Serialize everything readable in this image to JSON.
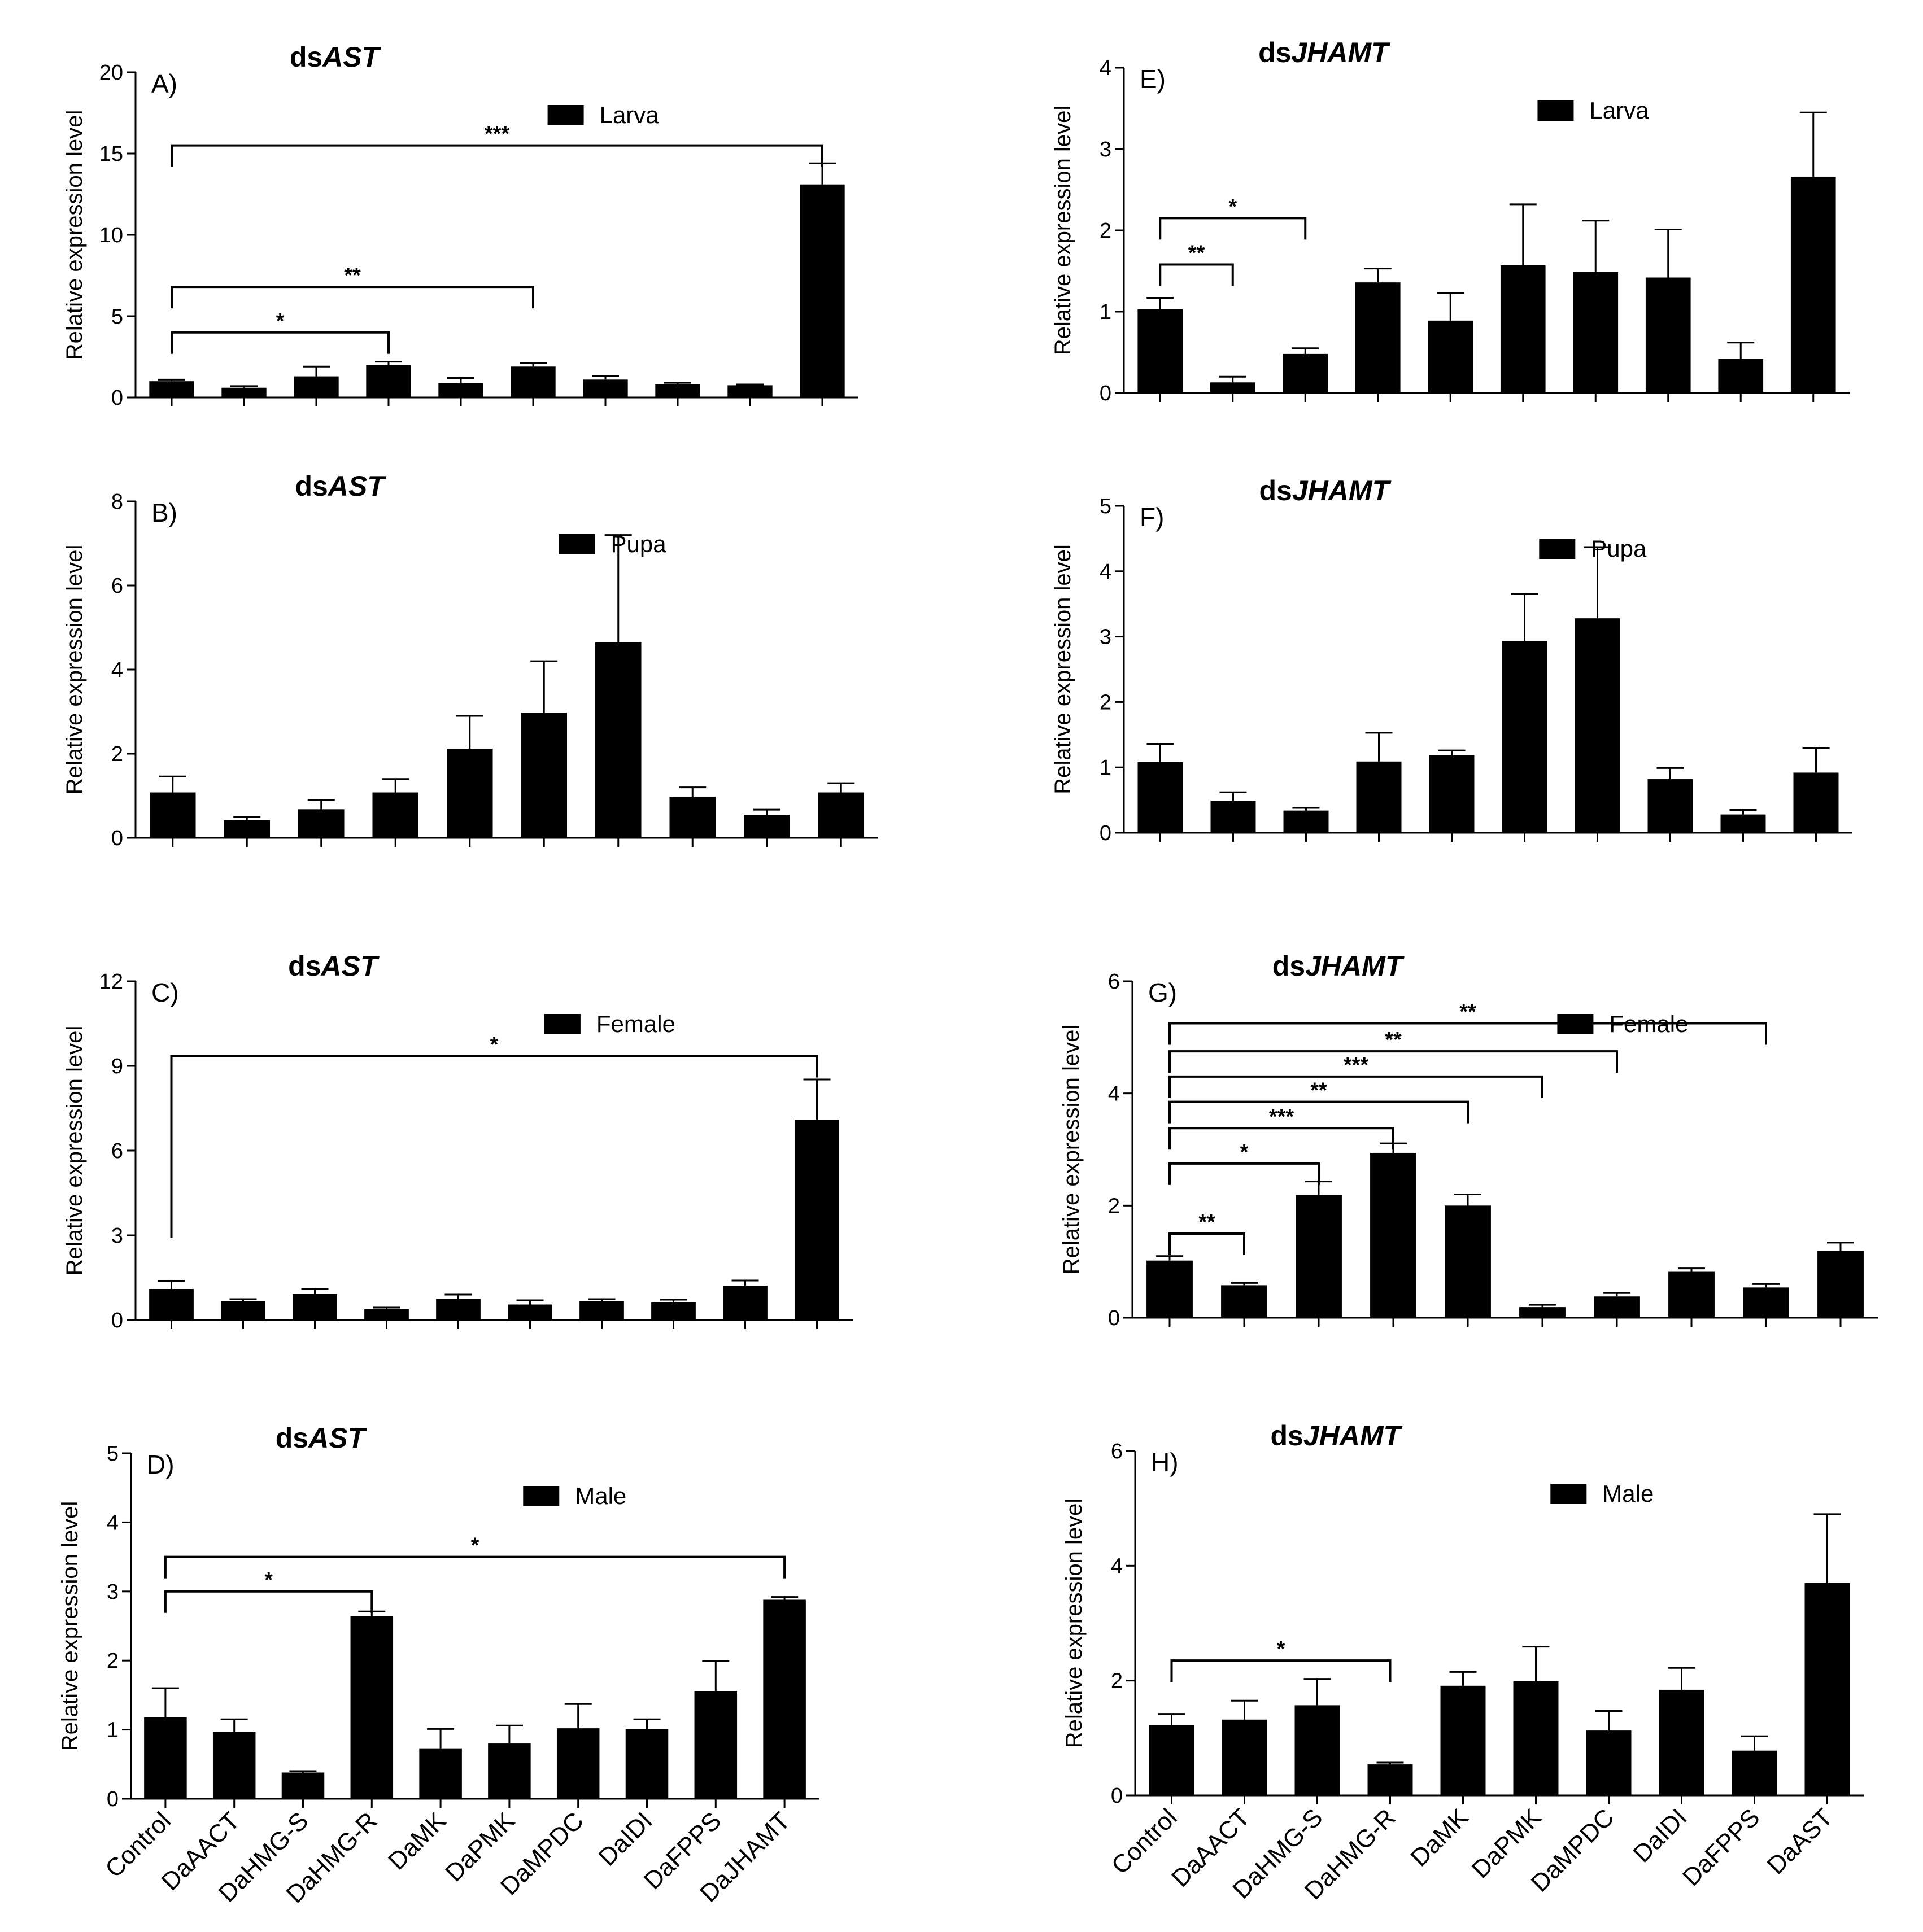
{
  "figure": {
    "categories_left": [
      "Control",
      "DaAACT",
      "DaHMG-S",
      "DaHMG-R",
      "DaMK",
      "DaPMK",
      "DaMPDC",
      "DaIDI",
      "DaFPPS",
      "DaJHAMT"
    ],
    "categories_right": [
      "Control",
      "DaAACT",
      "DaHMG-S",
      "DaHMG-R",
      "DaMK",
      "DaPMK",
      "DaMPDC",
      "DaIDI",
      "DaFPPS",
      "DaAST"
    ],
    "bar_color": "#000000"
  },
  "chart_data": [
    {
      "id": "A",
      "type": "bar",
      "letter": "A)",
      "title_prefix": "ds",
      "title_gene": "AST",
      "legend": "Larva",
      "ylabel": "Relative expression level",
      "ylim": [
        0,
        20
      ],
      "yticks": [
        "0",
        "5",
        "10",
        "15",
        "20"
      ],
      "categories": [
        "Control",
        "DaAACT",
        "DaHMG-S",
        "DaHMG-R",
        "DaMK",
        "DaPMK",
        "DaMPDC",
        "DaIDI",
        "DaFPPS",
        "DaJHAMT"
      ],
      "values": [
        1.0,
        0.6,
        1.3,
        2.0,
        0.9,
        1.9,
        1.1,
        0.8,
        0.75,
        13.1
      ],
      "errors": [
        0.1,
        0.1,
        0.6,
        0.2,
        0.3,
        0.2,
        0.2,
        0.1,
        0.05,
        1.3
      ],
      "significance": [
        {
          "from": 0,
          "to": 3,
          "y": 4.0,
          "label": "*"
        },
        {
          "from": 0,
          "to": 5,
          "y": 6.8,
          "label": "**"
        },
        {
          "from": 0,
          "to": 9,
          "y": 15.5,
          "label": "***"
        }
      ]
    },
    {
      "id": "E",
      "type": "bar",
      "letter": "E)",
      "title_prefix": "ds",
      "title_gene": "JHAMT",
      "legend": "Larva",
      "ylabel": "Relative expression level",
      "ylim": [
        0,
        4
      ],
      "yticks": [
        "0",
        "1",
        "2",
        "3",
        "4"
      ],
      "categories": [
        "Control",
        "DaAACT",
        "DaHMG-S",
        "DaHMG-R",
        "DaMK",
        "DaPMK",
        "DaMPDC",
        "DaIDI",
        "DaFPPS",
        "DaAST"
      ],
      "values": [
        1.03,
        0.13,
        0.48,
        1.36,
        0.89,
        1.57,
        1.49,
        1.42,
        0.42,
        2.66
      ],
      "errors": [
        0.14,
        0.07,
        0.07,
        0.17,
        0.34,
        0.75,
        0.63,
        0.59,
        0.2,
        0.79
      ],
      "significance": [
        {
          "from": 0,
          "to": 1,
          "y": 1.58,
          "label": "**"
        },
        {
          "from": 0,
          "to": 2,
          "y": 2.15,
          "label": "*"
        }
      ]
    },
    {
      "id": "B",
      "type": "bar",
      "letter": "B)",
      "title_prefix": "ds",
      "title_gene": "AST",
      "legend": "Pupa",
      "ylabel": "Relative expression level",
      "ylim": [
        0,
        8
      ],
      "yticks": [
        "0",
        "2",
        "4",
        "6",
        "8"
      ],
      "categories": [
        "Control",
        "DaAACT",
        "DaHMG-S",
        "DaHMG-R",
        "DaMK",
        "DaPMK",
        "DaMPDC",
        "DaIDI",
        "DaFPPS",
        "DaJHAMT"
      ],
      "values": [
        1.08,
        0.42,
        0.68,
        1.08,
        2.12,
        2.98,
        4.65,
        0.98,
        0.55,
        1.08
      ],
      "errors": [
        0.38,
        0.08,
        0.22,
        0.32,
        0.78,
        1.22,
        2.55,
        0.22,
        0.12,
        0.22
      ],
      "significance": []
    },
    {
      "id": "F",
      "type": "bar",
      "letter": "F)",
      "title_prefix": "ds",
      "title_gene": "JHAMT",
      "legend": "Pupa",
      "ylabel": "Relative expression level",
      "ylim": [
        0,
        5
      ],
      "yticks": [
        "0",
        "1",
        "2",
        "3",
        "4",
        "5"
      ],
      "categories": [
        "Control",
        "DaAACT",
        "DaHMG-S",
        "DaHMG-R",
        "DaMK",
        "DaPMK",
        "DaMPDC",
        "DaIDI",
        "DaFPPS",
        "DaAST"
      ],
      "values": [
        1.08,
        0.49,
        0.34,
        1.09,
        1.19,
        2.93,
        3.28,
        0.82,
        0.28,
        0.92
      ],
      "errors": [
        0.28,
        0.13,
        0.04,
        0.44,
        0.07,
        0.72,
        1.09,
        0.17,
        0.07,
        0.38
      ],
      "significance": []
    },
    {
      "id": "C",
      "type": "bar",
      "letter": "C)",
      "title_prefix": "ds",
      "title_gene": "AST",
      "legend": "Female",
      "ylabel": "Relative expression level",
      "ylim": [
        0,
        12
      ],
      "yticks": [
        "0",
        "3",
        "6",
        "9",
        "12"
      ],
      "categories": [
        "Control",
        "DaAACT",
        "DaHMG-S",
        "DaHMG-R",
        "DaMK",
        "DaPMK",
        "DaMPDC",
        "DaIDI",
        "DaFPPS",
        "DaJHAMT"
      ],
      "values": [
        1.1,
        0.68,
        0.92,
        0.38,
        0.75,
        0.55,
        0.68,
        0.62,
        1.22,
        7.1
      ],
      "errors": [
        0.28,
        0.06,
        0.18,
        0.06,
        0.15,
        0.15,
        0.06,
        0.1,
        0.18,
        1.42
      ],
      "significance": [
        {
          "from": 0,
          "to": 9,
          "y": 9.35,
          "label": "*",
          "drop_left": 2.9
        }
      ]
    },
    {
      "id": "G",
      "type": "bar",
      "letter": "G)",
      "title_prefix": "ds",
      "title_gene": "JHAMT",
      "legend": "Female",
      "ylabel": "Relative expression level",
      "ylim": [
        0,
        6
      ],
      "yticks": [
        "0",
        "2",
        "4",
        "6"
      ],
      "categories": [
        "Control",
        "DaAACT",
        "DaHMG-S",
        "DaHMG-R",
        "DaMK",
        "DaPMK",
        "DaMPDC",
        "DaIDI",
        "DaFPPS",
        "DaAST"
      ],
      "values": [
        1.02,
        0.58,
        2.19,
        2.94,
        2.0,
        0.19,
        0.38,
        0.82,
        0.54,
        1.19
      ],
      "errors": [
        0.08,
        0.04,
        0.24,
        0.17,
        0.2,
        0.04,
        0.06,
        0.06,
        0.06,
        0.15
      ],
      "significance": [
        {
          "from": 0,
          "to": 1,
          "y": 1.5,
          "label": "**"
        },
        {
          "from": 0,
          "to": 2,
          "y": 2.75,
          "label": "*"
        },
        {
          "from": 0,
          "to": 3,
          "y": 3.38,
          "label": "***"
        },
        {
          "from": 0,
          "to": 4,
          "y": 3.85,
          "label": "**"
        },
        {
          "from": 0,
          "to": 5,
          "y": 4.3,
          "label": "***"
        },
        {
          "from": 0,
          "to": 6,
          "y": 4.75,
          "label": "**"
        },
        {
          "from": 0,
          "to": 8,
          "y": 5.25,
          "label": "**"
        }
      ]
    },
    {
      "id": "D",
      "type": "bar",
      "letter": "D)",
      "title_prefix": "ds",
      "title_gene": "AST",
      "legend": "Male",
      "ylabel": "Relative expression level",
      "ylim": [
        0,
        5
      ],
      "yticks": [
        "0",
        "1",
        "2",
        "3",
        "4",
        "5"
      ],
      "categories": [
        "Control",
        "DaAACT",
        "DaHMG-S",
        "DaHMG-R",
        "DaMK",
        "DaPMK",
        "DaMPDC",
        "DaIDI",
        "DaFPPS",
        "DaJHAMT"
      ],
      "values": [
        1.18,
        0.97,
        0.38,
        2.64,
        0.73,
        0.8,
        1.02,
        1.01,
        1.56,
        2.88
      ],
      "errors": [
        0.42,
        0.18,
        0.02,
        0.07,
        0.28,
        0.26,
        0.35,
        0.14,
        0.43,
        0.04
      ],
      "significance": [
        {
          "from": 0,
          "to": 3,
          "y": 3.0,
          "label": "*"
        },
        {
          "from": 0,
          "to": 9,
          "y": 3.5,
          "label": "*"
        }
      ]
    },
    {
      "id": "H",
      "type": "bar",
      "letter": "H)",
      "title_prefix": "ds",
      "title_gene": "JHAMT",
      "legend": "Male",
      "ylabel": "Relative expression level",
      "ylim": [
        0,
        6
      ],
      "yticks": [
        "0",
        "2",
        "4",
        "6"
      ],
      "categories": [
        "Control",
        "DaAACT",
        "DaHMG-S",
        "DaHMG-R",
        "DaMK",
        "DaPMK",
        "DaMPDC",
        "DaIDI",
        "DaFPPS",
        "DaAST"
      ],
      "values": [
        1.22,
        1.32,
        1.57,
        0.54,
        1.91,
        1.99,
        1.13,
        1.84,
        0.78,
        3.7
      ],
      "errors": [
        0.2,
        0.33,
        0.46,
        0.03,
        0.24,
        0.6,
        0.34,
        0.38,
        0.25,
        1.2
      ],
      "significance": [
        {
          "from": 0,
          "to": 3,
          "y": 2.35,
          "label": "*"
        }
      ]
    }
  ]
}
